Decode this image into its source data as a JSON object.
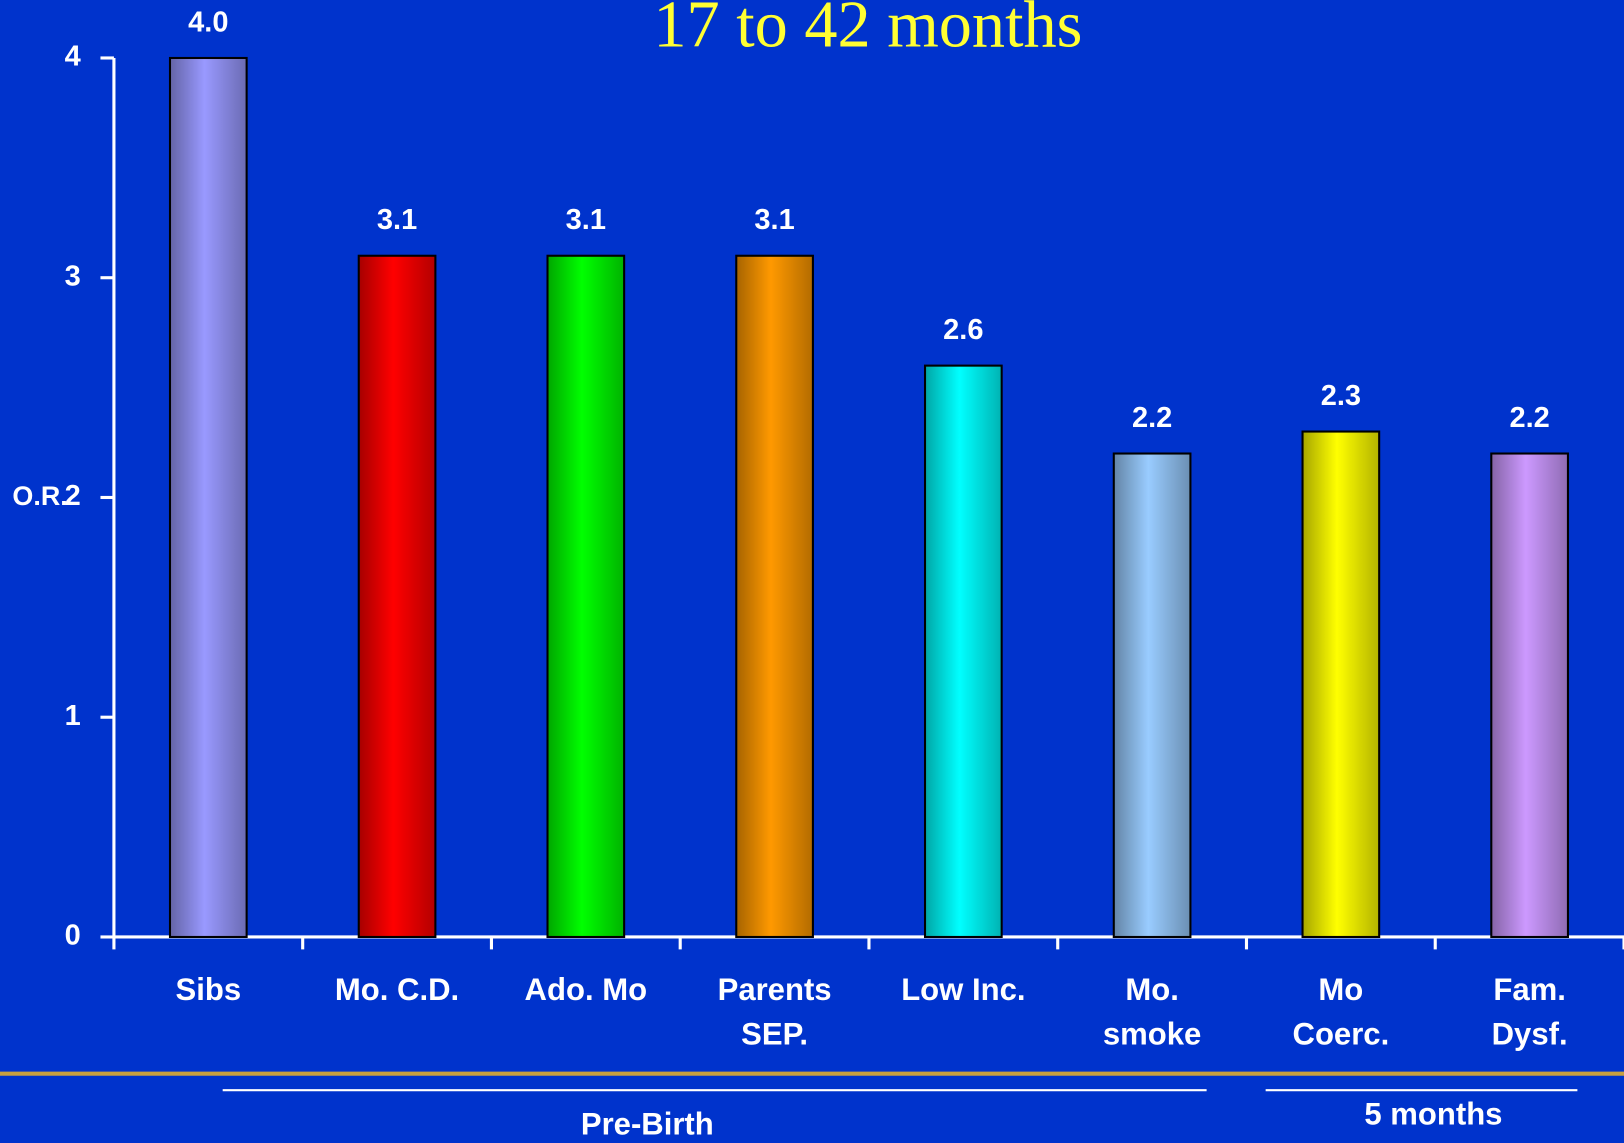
{
  "chart_data": {
    "type": "bar",
    "title": "17 to 42 months",
    "y_label": "O.R.",
    "categories": [
      "Sibs",
      "Mo. C.D.",
      "Ado. Mo",
      "Parents\nSEP.",
      "Low Inc.",
      "Mo.\nsmoke",
      "Mo\nCoerc.",
      "Fam.\nDysf."
    ],
    "values": [
      4.0,
      3.1,
      3.1,
      3.1,
      2.6,
      2.2,
      2.3,
      2.2
    ],
    "value_labels": [
      "4.0",
      "3.1",
      "3.1",
      "3.1",
      "2.6",
      "2.2",
      "2.3",
      "2.2"
    ],
    "colors": [
      "#9999ff",
      "#ff0000",
      "#00ff00",
      "#ff9900",
      "#00ffff",
      "#99ccff",
      "#ffff00",
      "#cc99ff"
    ],
    "ylim": [
      0,
      4
    ],
    "yticks": [
      0,
      1,
      2,
      3,
      4
    ],
    "annotations": [
      {
        "text": "Pre-Birth"
      },
      {
        "text": "5 months"
      }
    ]
  }
}
